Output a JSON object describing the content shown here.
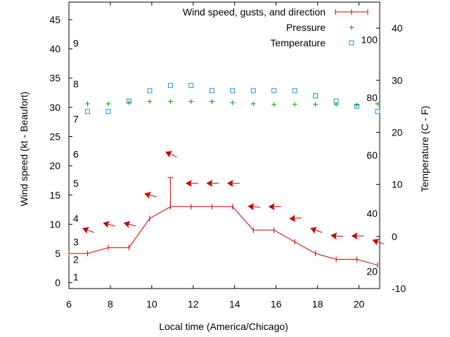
{
  "chart_data": {
    "type": "line",
    "xlabel": "Local time (America/Chicago)",
    "ylabel_left": "Wind speed (kt - Beaufort)",
    "ylabel_right": "Temperature (C - F)",
    "xlim": [
      6,
      21
    ],
    "ylim_left": [
      -1,
      48
    ],
    "ylim_right": [
      -10,
      45
    ],
    "x_ticks": [
      "6",
      "8",
      "10",
      "12",
      "14",
      "16",
      "18",
      "20"
    ],
    "y_left_ticks": [
      "0",
      "5",
      "10",
      "15",
      "20",
      "25",
      "30",
      "35",
      "40",
      "45"
    ],
    "y_right_ticks": [
      "-10",
      "0",
      "10",
      "20",
      "30",
      "40"
    ],
    "beaufort_labels": [
      {
        "label": "1",
        "kt": 1
      },
      {
        "label": "2",
        "kt": 4
      },
      {
        "label": "3",
        "kt": 7
      },
      {
        "label": "4",
        "kt": 11
      },
      {
        "label": "5",
        "kt": 17
      },
      {
        "label": "6",
        "kt": 22
      },
      {
        "label": "7",
        "kt": 28
      },
      {
        "label": "8",
        "kt": 34
      },
      {
        "label": "9",
        "kt": 41
      }
    ],
    "fahrenheit_labels": [
      {
        "label": "20",
        "c": -6.7
      },
      {
        "label": "40",
        "c": 4.4
      },
      {
        "label": "60",
        "c": 15.6
      },
      {
        "label": "80",
        "c": 26.7
      },
      {
        "label": "100",
        "c": 37.8
      }
    ],
    "legend_position": "top-right",
    "series": [
      {
        "name": "Wind speed, gusts, and direction",
        "color": "#cc0000",
        "x": [
          6,
          6.9,
          7.9,
          8.9,
          9.9,
          10.9,
          11.9,
          12.9,
          13.9,
          14.9,
          15.9,
          16.9,
          17.9,
          18.9,
          19.9,
          20.9
        ],
        "values": [
          5,
          5,
          6,
          6,
          11,
          13,
          13,
          13,
          13,
          9,
          9,
          7,
          5,
          4,
          4,
          3
        ],
        "gusts": [
          {
            "x": 10.9,
            "value": 18
          }
        ],
        "direction_arrows": [
          {
            "x": 6.9,
            "y": 9.0,
            "angle": 20
          },
          {
            "x": 7.9,
            "y": 10.0,
            "angle": 15
          },
          {
            "x": 8.9,
            "y": 10.0,
            "angle": 15
          },
          {
            "x": 9.9,
            "y": 15.0,
            "angle": 15
          },
          {
            "x": 10.9,
            "y": 22.0,
            "angle": 25
          },
          {
            "x": 11.9,
            "y": 17.0,
            "angle": 0
          },
          {
            "x": 12.9,
            "y": 17.0,
            "angle": 0
          },
          {
            "x": 13.9,
            "y": 17.0,
            "angle": 0
          },
          {
            "x": 14.9,
            "y": 13.0,
            "angle": 5
          },
          {
            "x": 15.9,
            "y": 13.0,
            "angle": 0
          },
          {
            "x": 16.9,
            "y": 11.0,
            "angle": -5
          },
          {
            "x": 17.9,
            "y": 9.0,
            "angle": 20
          },
          {
            "x": 18.9,
            "y": 8.0,
            "angle": 5
          },
          {
            "x": 19.9,
            "y": 8.0,
            "angle": 0
          },
          {
            "x": 20.9,
            "y": 7.0,
            "angle": 20
          }
        ]
      },
      {
        "name": "Pressure",
        "color": "#00a000",
        "marker": "plus",
        "axis": "left",
        "x": [
          6.9,
          7.9,
          8.9,
          9.9,
          10.9,
          11.9,
          12.9,
          13.9,
          14.9,
          15.9,
          16.9,
          17.9,
          18.9,
          19.9,
          20.9
        ],
        "values": [
          30.6,
          30.6,
          30.8,
          31.0,
          31.0,
          31.0,
          31.0,
          30.8,
          30.6,
          30.5,
          30.5,
          30.5,
          30.5,
          30.4,
          30.6
        ]
      },
      {
        "name": "Temperature",
        "color": "#1e8fd2",
        "marker": "square",
        "axis": "right",
        "x": [
          6.9,
          7.9,
          8.9,
          9.9,
          10.9,
          11.9,
          12.9,
          13.9,
          14.9,
          15.9,
          16.9,
          17.9,
          18.9,
          19.9,
          20.9
        ],
        "values": [
          24.0,
          24.0,
          26.0,
          28.0,
          29.0,
          29.0,
          28.0,
          28.0,
          28.0,
          28.0,
          28.0,
          27.0,
          26.0,
          25.0,
          24.0
        ]
      }
    ]
  }
}
